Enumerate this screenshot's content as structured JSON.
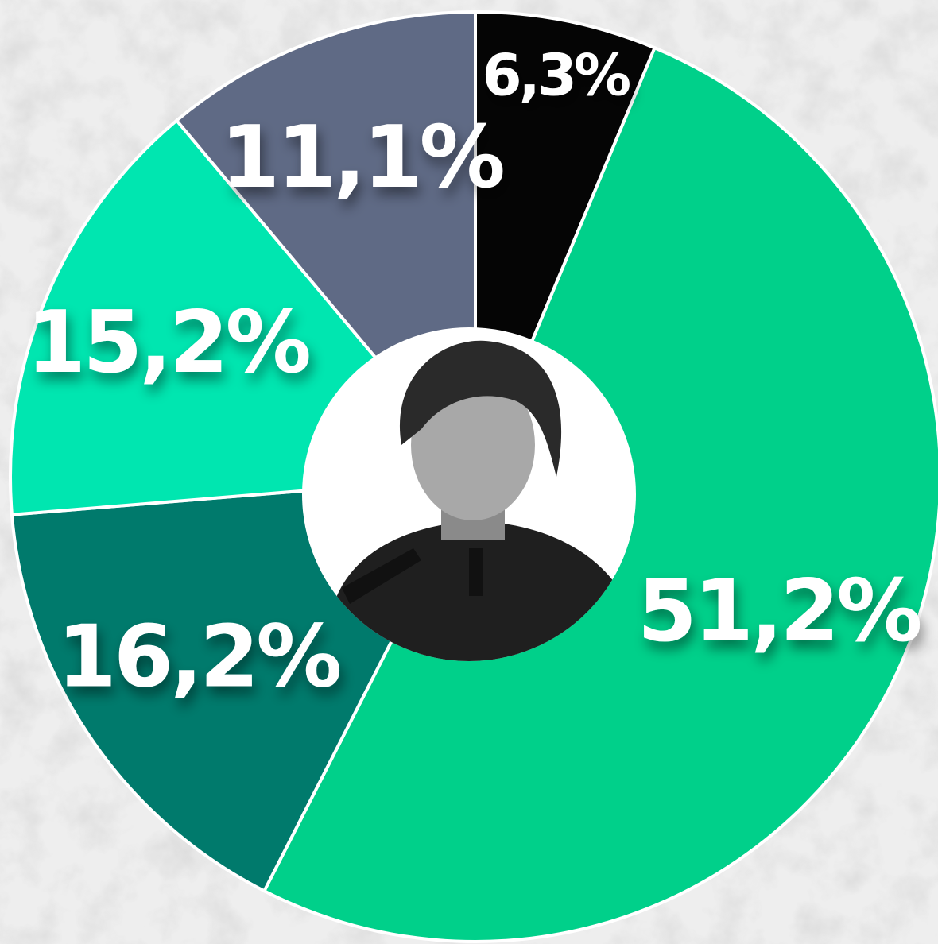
{
  "chart_data": {
    "type": "donut",
    "values": [
      6.3,
      51.2,
      16.2,
      15.2,
      11.1
    ],
    "value_labels": [
      "6,3%",
      "51,2%",
      "16,2%",
      "15,2%",
      "11,1%"
    ],
    "colors": [
      "#050505",
      "#00d08a",
      "#007a6c",
      "#00e6b0",
      "#5f6a85"
    ]
  }
}
